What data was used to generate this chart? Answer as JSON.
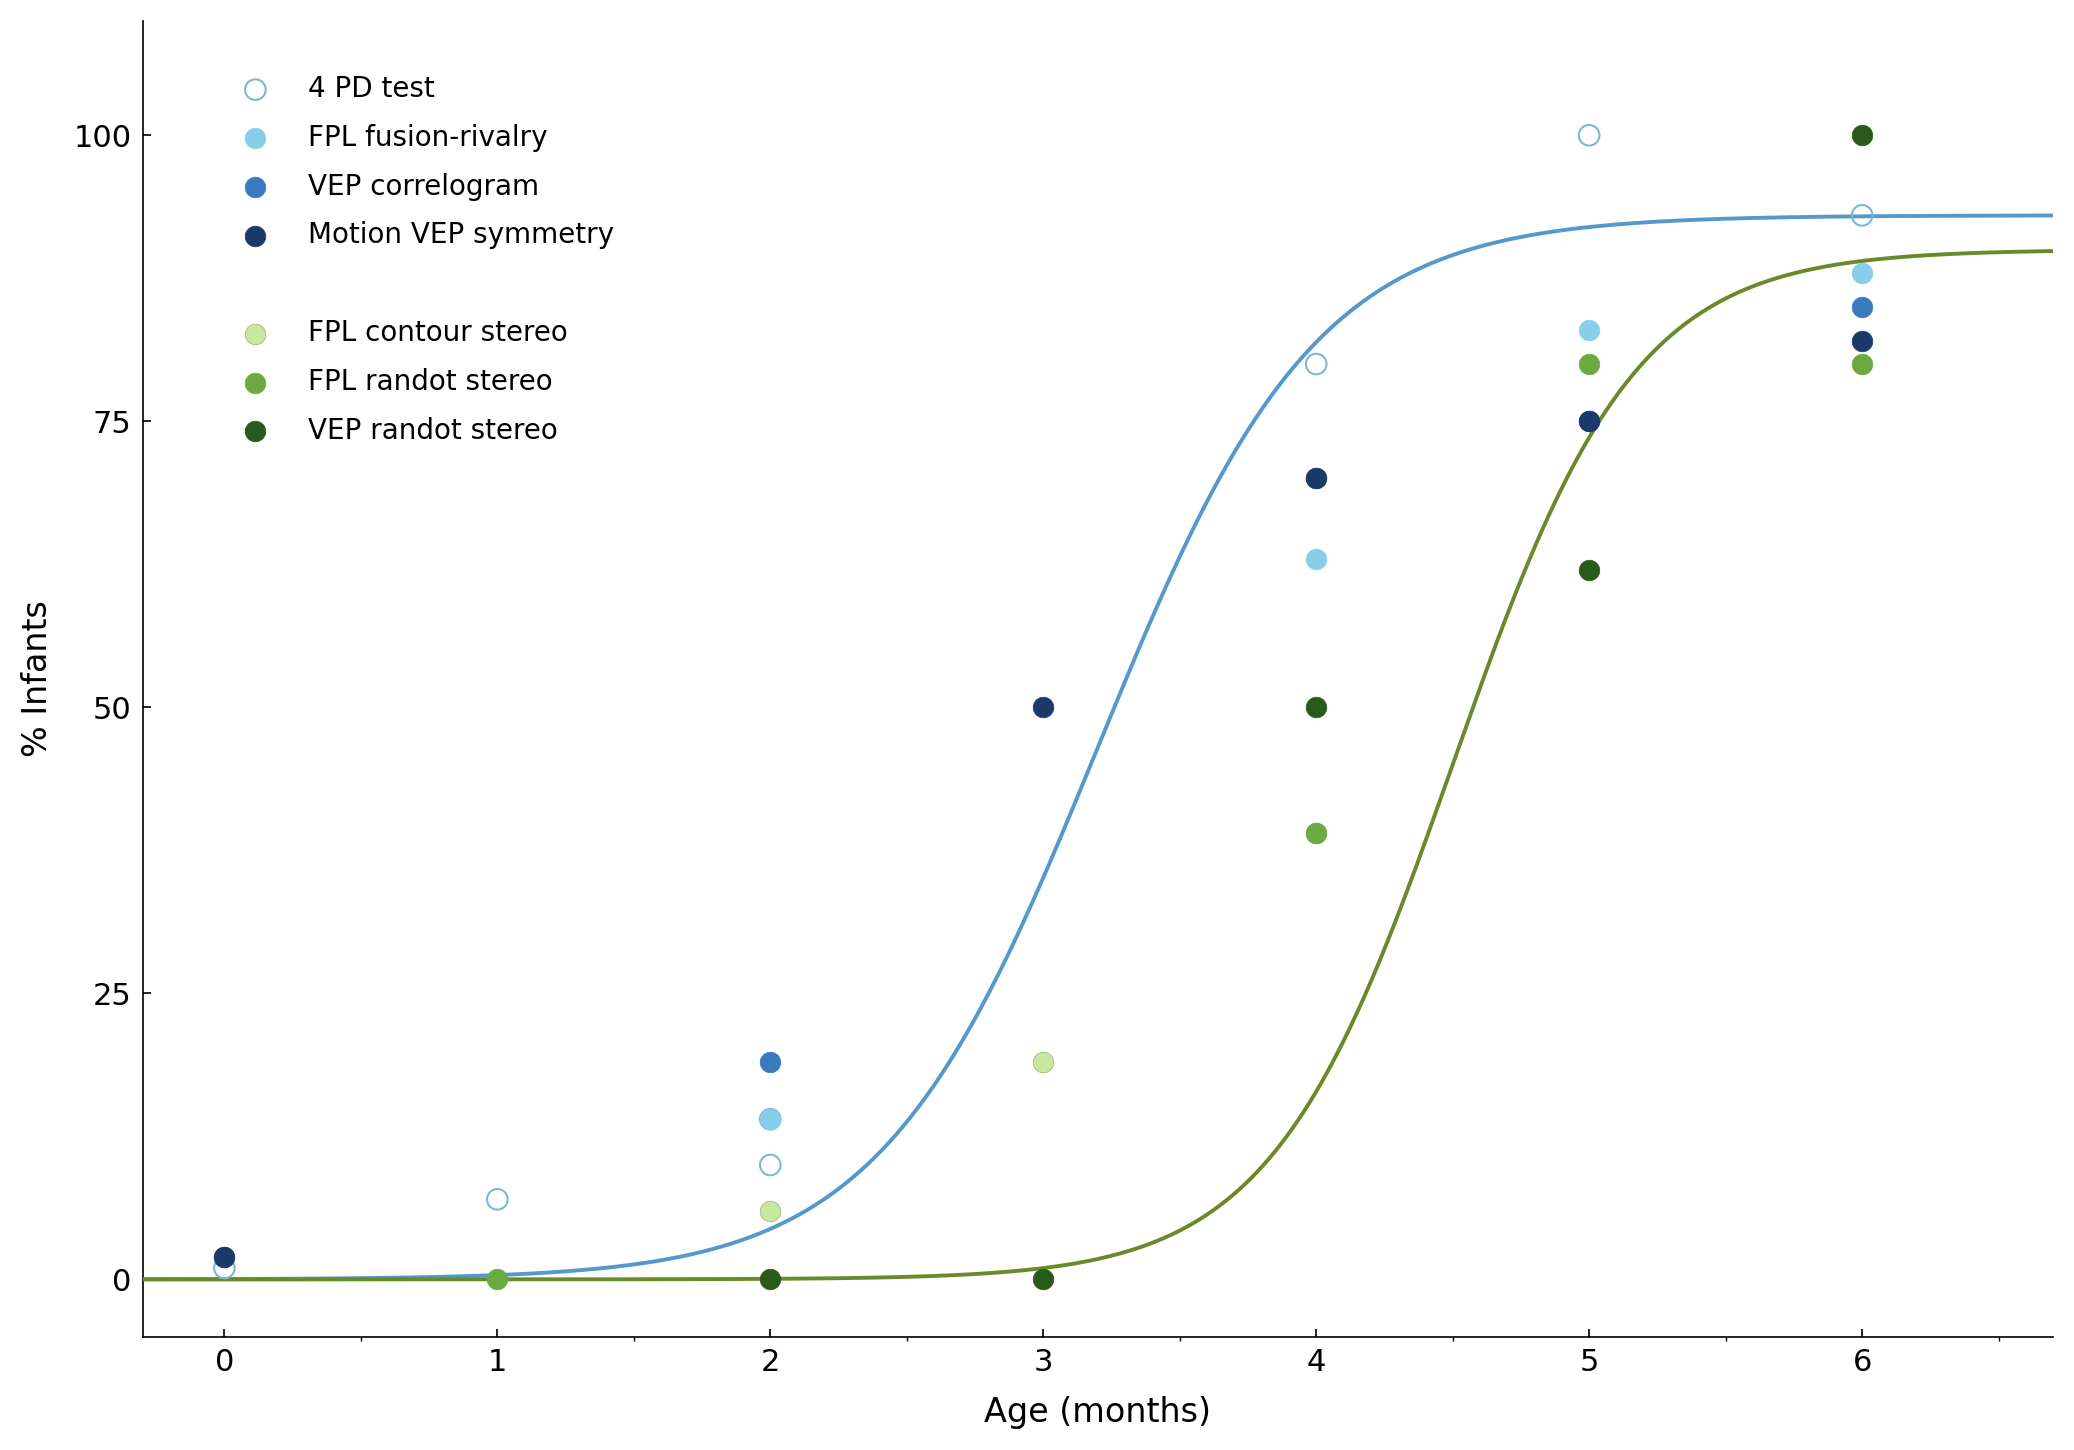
{
  "xlabel": "Age (months)",
  "ylabel": "% Infants",
  "xlim": [
    -0.3,
    6.7
  ],
  "ylim": [
    -5,
    110
  ],
  "yticks": [
    0,
    25,
    50,
    75,
    100
  ],
  "xticks": [
    0,
    1,
    2,
    3,
    4,
    5,
    6
  ],
  "scatter_series": [
    {
      "label": "4 PD test",
      "x": [
        0,
        1,
        2,
        2,
        4,
        5,
        6
      ],
      "y": [
        1,
        7,
        10,
        14,
        80,
        100,
        93
      ],
      "facecolor": "none",
      "edgecolor": "#7ab8d9",
      "size": 220,
      "linewidth": 1.5,
      "zorder": 5
    },
    {
      "label": "FPL fusion-rivalry",
      "x": [
        2,
        4,
        5,
        6
      ],
      "y": [
        14,
        63,
        83,
        88
      ],
      "facecolor": "#87CEEB",
      "edgecolor": "#87CEEB",
      "size": 220,
      "linewidth": 0.5,
      "zorder": 5
    },
    {
      "label": "VEP correlogram",
      "x": [
        0,
        2,
        4,
        5,
        6
      ],
      "y": [
        2,
        19,
        70,
        75,
        85
      ],
      "facecolor": "#3a7bbf",
      "edgecolor": "#3a7bbf",
      "size": 220,
      "linewidth": 0.5,
      "zorder": 5
    },
    {
      "label": "Motion VEP symmetry",
      "x": [
        0,
        3,
        4,
        5,
        6
      ],
      "y": [
        2,
        50,
        70,
        75,
        82
      ],
      "facecolor": "#1a3a6a",
      "edgecolor": "#1a3a6a",
      "size": 220,
      "linewidth": 0.5,
      "zorder": 5
    },
    {
      "label": "",
      "x": [],
      "y": [],
      "facecolor": "none",
      "edgecolor": "none",
      "size": 1,
      "linewidth": 0,
      "zorder": 1
    },
    {
      "label": "FPL contour stereo",
      "x": [
        2,
        3,
        4
      ],
      "y": [
        6,
        19,
        39
      ],
      "facecolor": "#c8e8a0",
      "edgecolor": "#8ab870",
      "size": 220,
      "linewidth": 0.5,
      "zorder": 5
    },
    {
      "label": "FPL randot stereo",
      "x": [
        1,
        4,
        5,
        6
      ],
      "y": [
        0,
        39,
        80,
        80
      ],
      "facecolor": "#6aaa40",
      "edgecolor": "#6aaa40",
      "size": 220,
      "linewidth": 0.5,
      "zorder": 5
    },
    {
      "label": "VEP randot stereo",
      "x": [
        2,
        3,
        4,
        5,
        6
      ],
      "y": [
        0,
        0,
        50,
        62,
        100
      ],
      "facecolor": "#2a5a1a",
      "edgecolor": "#2a5a1a",
      "size": 220,
      "linewidth": 0.5,
      "zorder": 5
    }
  ],
  "blue_curve_color": "#5599cc",
  "green_curve_color": "#6a8a2a",
  "blue_curve_params": [
    93,
    2.5,
    3.2
  ],
  "green_curve_params": [
    90,
    3.0,
    4.5
  ],
  "background_color": "#ffffff",
  "legend_fontsize": 20,
  "axis_fontsize": 24,
  "tick_fontsize": 22
}
